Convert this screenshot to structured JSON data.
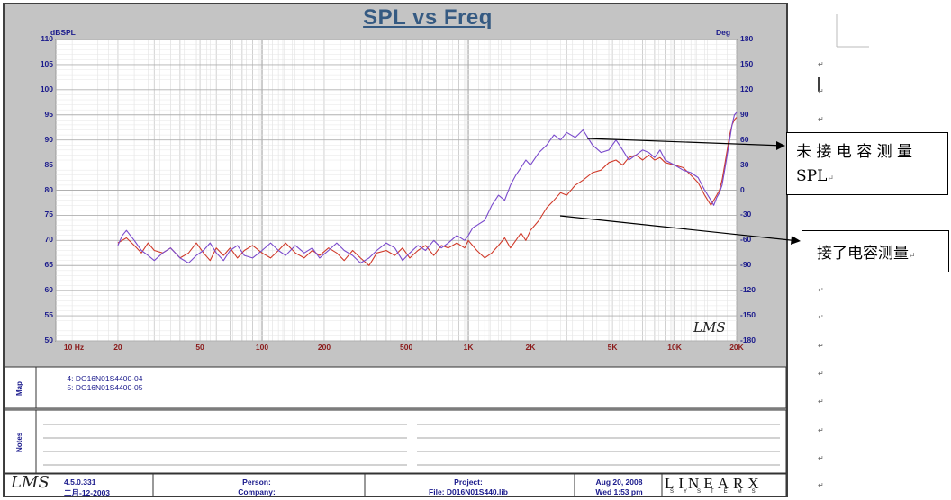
{
  "chart_data": {
    "type": "line",
    "title": "SPL vs Freq",
    "ylabel_left": "dBSPL",
    "ylabel_right": "Deg",
    "xscale": "log",
    "xlim": [
      10,
      20000
    ],
    "ylim": [
      50,
      110
    ],
    "ylim_right": [
      -180,
      180
    ],
    "x_ticks": [
      {
        "value": 10,
        "label": "10  Hz"
      },
      {
        "value": 20,
        "label": "20"
      },
      {
        "value": 50,
        "label": "50"
      },
      {
        "value": 100,
        "label": "100"
      },
      {
        "value": 200,
        "label": "200"
      },
      {
        "value": 500,
        "label": "500"
      },
      {
        "value": 1000,
        "label": "1K"
      },
      {
        "value": 2000,
        "label": "2K"
      },
      {
        "value": 5000,
        "label": "5K"
      },
      {
        "value": 10000,
        "label": "10K"
      },
      {
        "value": 20000,
        "label": "20K"
      }
    ],
    "y_ticks_left": [
      "110",
      "105",
      "100",
      "95",
      "90",
      "85",
      "80",
      "75",
      "70",
      "65",
      "60",
      "55",
      "50"
    ],
    "y_ticks_right": [
      "180",
      "150",
      "120",
      "90",
      "60",
      "30",
      "0",
      "-30",
      "-60",
      "-90",
      "-120",
      "-150",
      "-180"
    ],
    "grid": true,
    "series": [
      {
        "name": "4: DO16N01S4400-04",
        "color": "#d03a2a",
        "points": [
          [
            20,
            69.5
          ],
          [
            22,
            70.5
          ],
          [
            24,
            69
          ],
          [
            26,
            67.5
          ],
          [
            28,
            69.5
          ],
          [
            30,
            68
          ],
          [
            33,
            67.5
          ],
          [
            36,
            68.5
          ],
          [
            40,
            66.5
          ],
          [
            44,
            67.5
          ],
          [
            48,
            69.5
          ],
          [
            52,
            67.5
          ],
          [
            56,
            66
          ],
          [
            60,
            68.5
          ],
          [
            65,
            67
          ],
          [
            70,
            68.5
          ],
          [
            76,
            66.5
          ],
          [
            82,
            68
          ],
          [
            90,
            69
          ],
          [
            100,
            67.5
          ],
          [
            110,
            66.5
          ],
          [
            120,
            68
          ],
          [
            130,
            69.5
          ],
          [
            145,
            67.5
          ],
          [
            160,
            66.5
          ],
          [
            175,
            68
          ],
          [
            190,
            67
          ],
          [
            210,
            68.5
          ],
          [
            230,
            67.5
          ],
          [
            250,
            66
          ],
          [
            275,
            68
          ],
          [
            300,
            66.5
          ],
          [
            330,
            65
          ],
          [
            360,
            67.5
          ],
          [
            400,
            68
          ],
          [
            440,
            67
          ],
          [
            480,
            68.5
          ],
          [
            520,
            66.5
          ],
          [
            570,
            68
          ],
          [
            620,
            69
          ],
          [
            680,
            67
          ],
          [
            740,
            69
          ],
          [
            800,
            68.5
          ],
          [
            880,
            69.5
          ],
          [
            960,
            68.5
          ],
          [
            1000,
            70
          ],
          [
            1100,
            68
          ],
          [
            1200,
            66.5
          ],
          [
            1300,
            67.5
          ],
          [
            1400,
            69
          ],
          [
            1500,
            70.5
          ],
          [
            1600,
            68.5
          ],
          [
            1700,
            70
          ],
          [
            1800,
            71.5
          ],
          [
            1900,
            70
          ],
          [
            2000,
            72
          ],
          [
            2200,
            74
          ],
          [
            2400,
            76.5
          ],
          [
            2600,
            78
          ],
          [
            2800,
            79.5
          ],
          [
            3000,
            79
          ],
          [
            3300,
            81
          ],
          [
            3600,
            82
          ],
          [
            4000,
            83.5
          ],
          [
            4400,
            84
          ],
          [
            4800,
            85.5
          ],
          [
            5200,
            86
          ],
          [
            5600,
            85
          ],
          [
            6000,
            86.5
          ],
          [
            6500,
            87
          ],
          [
            7000,
            86
          ],
          [
            7500,
            87
          ],
          [
            8000,
            86
          ],
          [
            8500,
            86.5
          ],
          [
            9000,
            85.5
          ],
          [
            10000,
            85
          ],
          [
            11000,
            84.5
          ],
          [
            12000,
            83
          ],
          [
            13000,
            81.5
          ],
          [
            14000,
            79
          ],
          [
            15000,
            77
          ],
          [
            15500,
            78
          ],
          [
            16000,
            79
          ],
          [
            16500,
            80
          ],
          [
            17000,
            82
          ],
          [
            17500,
            85
          ],
          [
            18000,
            88
          ],
          [
            18500,
            91
          ],
          [
            19000,
            93
          ],
          [
            19500,
            94
          ],
          [
            20000,
            94.5
          ]
        ]
      },
      {
        "name": "5: DO16N01S4400-05",
        "color": "#7a4acc",
        "points": [
          [
            20,
            69
          ],
          [
            21,
            71
          ],
          [
            22,
            72
          ],
          [
            24,
            70
          ],
          [
            26,
            68
          ],
          [
            28,
            67
          ],
          [
            30,
            66
          ],
          [
            33,
            67.5
          ],
          [
            36,
            68.5
          ],
          [
            40,
            66.5
          ],
          [
            44,
            65.5
          ],
          [
            48,
            67
          ],
          [
            52,
            68
          ],
          [
            56,
            69.5
          ],
          [
            60,
            67.5
          ],
          [
            65,
            66
          ],
          [
            70,
            68
          ],
          [
            76,
            69
          ],
          [
            82,
            67
          ],
          [
            90,
            66.5
          ],
          [
            100,
            68
          ],
          [
            110,
            69.5
          ],
          [
            120,
            68
          ],
          [
            130,
            67
          ],
          [
            145,
            69
          ],
          [
            160,
            67.5
          ],
          [
            175,
            68.5
          ],
          [
            190,
            66.5
          ],
          [
            210,
            68
          ],
          [
            230,
            69.5
          ],
          [
            250,
            68
          ],
          [
            275,
            67
          ],
          [
            300,
            65.5
          ],
          [
            330,
            66.5
          ],
          [
            360,
            68
          ],
          [
            400,
            69.5
          ],
          [
            440,
            68.5
          ],
          [
            480,
            66
          ],
          [
            520,
            67.5
          ],
          [
            570,
            69
          ],
          [
            620,
            68
          ],
          [
            680,
            70
          ],
          [
            740,
            68.5
          ],
          [
            800,
            69.5
          ],
          [
            880,
            71
          ],
          [
            960,
            70
          ],
          [
            1000,
            71
          ],
          [
            1050,
            72.5
          ],
          [
            1100,
            73
          ],
          [
            1200,
            74
          ],
          [
            1300,
            77
          ],
          [
            1400,
            79
          ],
          [
            1500,
            78
          ],
          [
            1600,
            81
          ],
          [
            1700,
            83
          ],
          [
            1800,
            84.5
          ],
          [
            1900,
            86
          ],
          [
            2000,
            85
          ],
          [
            2200,
            87.5
          ],
          [
            2400,
            89
          ],
          [
            2600,
            91
          ],
          [
            2800,
            90
          ],
          [
            3000,
            91.5
          ],
          [
            3300,
            90.5
          ],
          [
            3600,
            92
          ],
          [
            4000,
            89
          ],
          [
            4400,
            87.5
          ],
          [
            4800,
            88
          ],
          [
            5200,
            90
          ],
          [
            5600,
            88
          ],
          [
            6000,
            86
          ],
          [
            6500,
            87
          ],
          [
            7000,
            88
          ],
          [
            7500,
            87.5
          ],
          [
            8000,
            86.5
          ],
          [
            8500,
            88
          ],
          [
            9000,
            86
          ],
          [
            10000,
            85
          ],
          [
            11000,
            84
          ],
          [
            12000,
            83.5
          ],
          [
            13000,
            82.5
          ],
          [
            14000,
            80
          ],
          [
            15000,
            78
          ],
          [
            15500,
            77
          ],
          [
            16000,
            78.5
          ],
          [
            16500,
            79.5
          ],
          [
            17000,
            81
          ],
          [
            17500,
            84
          ],
          [
            18000,
            87
          ],
          [
            18500,
            90
          ],
          [
            19000,
            93
          ],
          [
            19500,
            95
          ],
          [
            20000,
            95.5
          ]
        ]
      }
    ]
  },
  "map_label": "Map",
  "notes_label": "Notes",
  "watermark": "LMS",
  "footer": {
    "logo": "LMS",
    "version": "4.5.0.331",
    "version_date": "二月-12-2003",
    "person_label": "Person:",
    "company_label": "Company:",
    "project_label": "Project:",
    "file_label": "File: D016N01S440.lib",
    "date": "Aug 20, 2008",
    "time": "Wed  1:53 pm",
    "brand": "LINEARX",
    "brand_sub": "SYSTEMS"
  },
  "annotations": {
    "callout1_line1": "未 接 电 容 测 量",
    "callout1_line2": "SPL",
    "callout2": "接了电容测量",
    "return_mark": "↵"
  }
}
